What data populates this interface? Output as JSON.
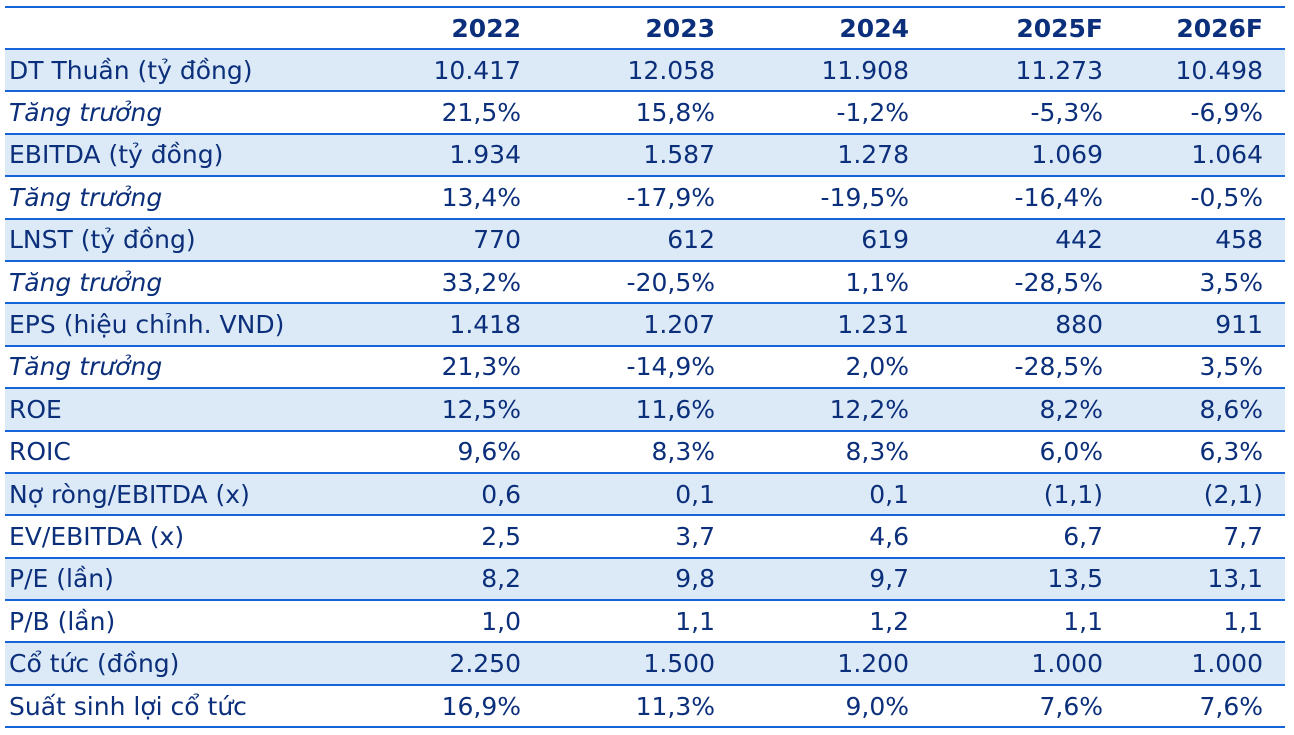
{
  "chart_data": {
    "type": "table",
    "columns": [
      "",
      "2022",
      "2023",
      "2024",
      "2025F",
      "2026F"
    ],
    "rows": [
      {
        "label": "DT Thuần (tỷ đồng)",
        "values": [
          "10.417",
          "12.058",
          "11.908",
          "11.273",
          "10.498"
        ],
        "italic": false,
        "shaded": true
      },
      {
        "label": "Tăng trưởng",
        "values": [
          "21,5%",
          "15,8%",
          "-1,2%",
          "-5,3%",
          "-6,9%"
        ],
        "italic": true,
        "shaded": false
      },
      {
        "label": "EBITDA (tỷ đồng)",
        "values": [
          "1.934",
          "1.587",
          "1.278",
          "1.069",
          "1.064"
        ],
        "italic": false,
        "shaded": true
      },
      {
        "label": "Tăng trưởng",
        "values": [
          "13,4%",
          "-17,9%",
          "-19,5%",
          "-16,4%",
          "-0,5%"
        ],
        "italic": true,
        "shaded": false
      },
      {
        "label": "LNST (tỷ đồng)",
        "values": [
          "770",
          "612",
          "619",
          "442",
          "458"
        ],
        "italic": false,
        "shaded": true
      },
      {
        "label": "Tăng trưởng",
        "values": [
          "33,2%",
          "-20,5%",
          "1,1%",
          "-28,5%",
          "3,5%"
        ],
        "italic": true,
        "shaded": false
      },
      {
        "label": "EPS (hiệu chỉnh. VND)",
        "values": [
          "1.418",
          "1.207",
          "1.231",
          "880",
          "911"
        ],
        "italic": false,
        "shaded": true
      },
      {
        "label": "Tăng trưởng",
        "values": [
          "21,3%",
          "-14,9%",
          "2,0%",
          "-28,5%",
          "3,5%"
        ],
        "italic": true,
        "shaded": false
      },
      {
        "label": "ROE",
        "values": [
          "12,5%",
          "11,6%",
          "12,2%",
          "8,2%",
          "8,6%"
        ],
        "italic": false,
        "shaded": true
      },
      {
        "label": "ROIC",
        "values": [
          "9,6%",
          "8,3%",
          "8,3%",
          "6,0%",
          "6,3%"
        ],
        "italic": false,
        "shaded": false
      },
      {
        "label": "Nợ ròng/EBITDA (x)",
        "values": [
          "0,6",
          "0,1",
          "0,1",
          "(1,1)",
          "(2,1)"
        ],
        "italic": false,
        "shaded": true
      },
      {
        "label": "EV/EBITDA (x)",
        "values": [
          "2,5",
          "3,7",
          "4,6",
          "6,7",
          "7,7"
        ],
        "italic": false,
        "shaded": false
      },
      {
        "label": "P/E (lần)",
        "values": [
          "8,2",
          "9,8",
          "9,7",
          "13,5",
          "13,1"
        ],
        "italic": false,
        "shaded": true
      },
      {
        "label": "P/B (lần)",
        "values": [
          "1,0",
          "1,1",
          "1,2",
          "1,1",
          "1,1"
        ],
        "italic": false,
        "shaded": false
      },
      {
        "label": "Cổ tức (đồng)",
        "values": [
          "2.250",
          "1.500",
          "1.200",
          "1.000",
          "1.000"
        ],
        "italic": false,
        "shaded": true
      },
      {
        "label": "Suất sinh lợi cổ tức",
        "values": [
          "16,9%",
          "11,3%",
          "9,0%",
          "7,6%",
          "7,6%"
        ],
        "italic": false,
        "shaded": false
      }
    ]
  },
  "colors": {
    "text": "#0b2f7a",
    "rule": "#1565d8",
    "shade": "#dce9f7"
  }
}
